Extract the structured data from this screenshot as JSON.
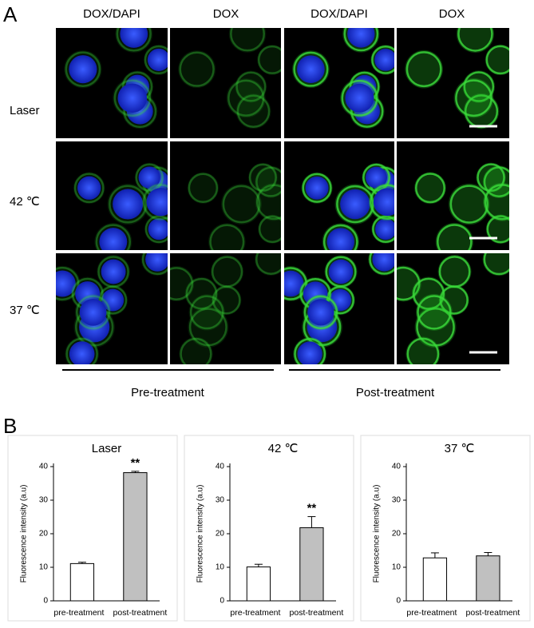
{
  "panel_a": {
    "label": "A",
    "columns": [
      "DOX/DAPI",
      "DOX",
      "DOX/DAPI",
      "DOX"
    ],
    "rows": [
      "Laser",
      "42 ℃",
      "37 ℃"
    ],
    "groups": [
      "Pre-treatment",
      "Post-treatment"
    ]
  },
  "panel_b": {
    "label": "B"
  },
  "chart_data": [
    {
      "type": "bar",
      "title": "Laser",
      "ylabel": "Fluorescence intensity (a.u)",
      "categories": [
        "pre-treatment",
        "post-treatment"
      ],
      "values": [
        11.1,
        38.2
      ],
      "errors": [
        0.4,
        0.4
      ],
      "colors": [
        "#ffffff",
        "#c0c0c0"
      ],
      "annotation": "**",
      "ylim": [
        0,
        40
      ],
      "yticks": [
        0,
        10,
        20,
        30,
        40
      ]
    },
    {
      "type": "bar",
      "title": "42 ℃",
      "ylabel": "Fluorescence intensity (a.u)",
      "categories": [
        "pre-treatment",
        "post-treatment"
      ],
      "values": [
        10.1,
        21.8
      ],
      "errors": [
        0.8,
        3.3
      ],
      "colors": [
        "#ffffff",
        "#c0c0c0"
      ],
      "annotation": "**",
      "ylim": [
        0,
        40
      ],
      "yticks": [
        0,
        10,
        20,
        30,
        40
      ]
    },
    {
      "type": "bar",
      "title": "37 ℃",
      "ylabel": "Fluorescence intensity (a.u)",
      "categories": [
        "pre-treatment",
        "post-treatment"
      ],
      "values": [
        12.8,
        13.4
      ],
      "errors": [
        1.5,
        1.0
      ],
      "colors": [
        "#ffffff",
        "#c0c0c0"
      ],
      "ylim": [
        0,
        40
      ],
      "yticks": [
        0,
        10,
        20,
        30,
        40
      ]
    }
  ]
}
